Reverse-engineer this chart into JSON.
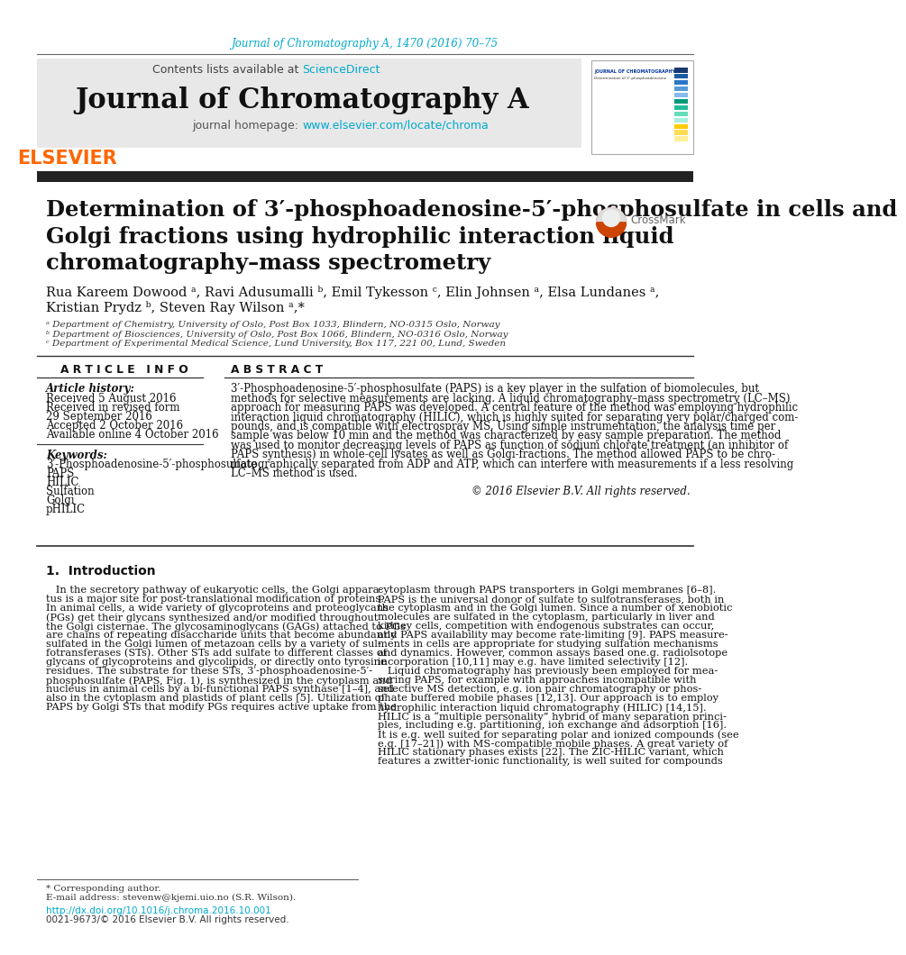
{
  "bg_color": "#ffffff",
  "top_citation": "Journal of Chromatography A, 1470 (2016) 70–75",
  "top_citation_color": "#00aacc",
  "header_bg": "#e8e8e8",
  "header_text": "Contents lists available at ",
  "sciencedirect_text": "ScienceDirect",
  "sciencedirect_color": "#00aacc",
  "journal_title": "Journal of Chromatography A",
  "homepage_text": "journal homepage: ",
  "homepage_url": "www.elsevier.com/locate/chroma",
  "homepage_url_color": "#00aacc",
  "divider_color": "#333333",
  "article_title_line1": "Determination of 3′-phosphoadenosine-5′-phosphosulfate in cells and",
  "article_title_line2": "Golgi fractions using hydrophilic interaction liquid",
  "article_title_line3": "chromatography–mass spectrometry",
  "authors_line1": "Rua Kareem Dowood ᵃ, Ravi Adusumalli ᵇ, Emil Tykesson ᶜ, Elin Johnsen ᵃ, Elsa Lundanes ᵃ,",
  "authors_line2": "Kristian Prydz ᵇ, Steven Ray Wilson ᵃ,*",
  "affil_a": "ᵃ Department of Chemistry, University of Oslo, Post Box 1033, Blindern, NO-0315 Oslo, Norway",
  "affil_b": "ᵇ Department of Biosciences, University of Oslo, Post Box 1066, Blindern, NO-0316 Oslo, Norway",
  "affil_c": "ᶜ Department of Experimental Medical Science, Lund University, Box 117, 221 00, Lund, Sweden",
  "article_info_header": "A R T I C L E   I N F O",
  "abstract_header": "A B S T R A C T",
  "article_history_header": "Article history:",
  "received": "Received 5 August 2016",
  "revised": "Received in revised form",
  "revised2": "29 September 2016",
  "accepted": "Accepted 2 October 2016",
  "available": "Available online 4 October 2016",
  "keywords_header": "Keywords:",
  "keyword1": "3′-Phosphoadenosine-5′-phosphosulfate",
  "keyword2": "PAPS",
  "keyword3": "HILIC",
  "keyword4": "Sulfation",
  "keyword5": "Golgi",
  "keyword6": "pHILIC",
  "abstract_text": "3′-Phosphoadenosine-5′-phosphosulfate (PAPS) is a key player in the sulfation of biomolecules, but\nmethods for selective measurements are lacking. A liquid chromatography–mass spectrometry (LC–MS)\napproach for measuring PAPS was developed. A central feature of the method was employing hydrophilic\ninteraction liquid chromatography (HILIC), which is highly suited for separating very polar/charged com-\npounds, and is compatible with electrospray MS. Using simple instrumentation, the analysis time per\nsample was below 10 min and the method was characterized by easy sample preparation. The method\nwas used to monitor decreasing levels of PAPS as function of sodium chlorate treatment (an inhibitor of\nPAPS synthesis) in whole-cell lysates as well as Golgi-fractions. The method allowed PAPS to be chro-\nmatographically separated from ADP and ATP, which can interfere with measurements if a less resolving\nLC–MS method is used.",
  "copyright": "© 2016 Elsevier B.V. All rights reserved.",
  "intro_header": "1.  Introduction",
  "intro_col1_text": "   In the secretory pathway of eukaryotic cells, the Golgi appara-\ntus is a major site for post-translational modification of proteins.\nIn animal cells, a wide variety of glycoproteins and proteoglycans\n(PGs) get their glycans synthesized and/or modified throughout\nthe Golgi cisternae. The glycosaminoglycans (GAGs) attached to PGs\nare chains of repeating disaccharide units that become abundantly\nsulfated in the Golgi lumen of metazoan cells by a variety of sul-\nfotransferases (STs). Other STs add sulfate to different classes of\nglycans of glycoproteins and glycolipids, or directly onto tyrosine\nresidues. The substrate for these STs, 3′-phosphoadenosine-5′-\nphosphosulfate (PAPS, Fig. 1), is synthesized in the cytoplasm and\nnucleus in animal cells by a bi-functional PAPS synthase [1–4], and\nalso in the cytoplasm and plastids of plant cells [5]. Utilization of\nPAPS by Golgi STs that modify PGs requires active uptake from the",
  "intro_col2_text": "cytoplasm through PAPS transporters in Golgi membranes [6–8].\nPAPS is the universal donor of sulfate to sulfotransferases, both in\nthe cytoplasm and in the Golgi lumen. Since a number of xenobiotic\nmolecules are sulfated in the cytoplasm, particularly in liver and\nkidney cells, competition with endogenous substrates can occur,\nand PAPS availability may become rate-limiting [9]. PAPS measure-\nments in cells are appropriate for studying sulfation mechanisms\nand dynamics. However, common assays based one.g. radiolsotope\nincorporation [10,11] may e.g. have limited selectivity [12].\n   Liquid chromatography has previously been employed for mea-\nsuring PAPS, for example with approaches incompatible with\nselective MS detection, e.g. ion pair chromatography or phos-\nphate buffered mobile phases [12,13]. Our approach is to employ\nhydrophilic interaction liquid chromatography (HILIC) [14,15].\nHILIC is a “multiple personality” hybrid of many separation princi-\nples, including e.g. partitioning, ion exchange and adsorption [16].\nIt is e.g. well suited for separating polar and ionized compounds (see\ne.g. [17–21]) with MS-compatible mobile phases. A great variety of\nHILIC stationary phases exists [22]. The ZIC-HILIC variant, which\nfeatures a zwitter-ionic functionality, is well suited for compounds",
  "footer_line1": "* Corresponding author.",
  "footer_email": "E-mail address: stevenw@kjemi.uio.no (S.R. Wilson).",
  "footer_doi": "http://dx.doi.org/10.1016/j.chroma.2016.10.001",
  "footer_doi_color": "#00aacc",
  "footer_issn": "0021-9673/© 2016 Elsevier B.V. All rights reserved.",
  "stripe_colors": [
    "#1a3a6b",
    "#1a5ca0",
    "#2878c8",
    "#5599d8",
    "#88bbee",
    "#00997a",
    "#22bb99",
    "#66ddbb",
    "#aaeedd",
    "#ffcc00",
    "#ffdd55",
    "#ffee99"
  ]
}
